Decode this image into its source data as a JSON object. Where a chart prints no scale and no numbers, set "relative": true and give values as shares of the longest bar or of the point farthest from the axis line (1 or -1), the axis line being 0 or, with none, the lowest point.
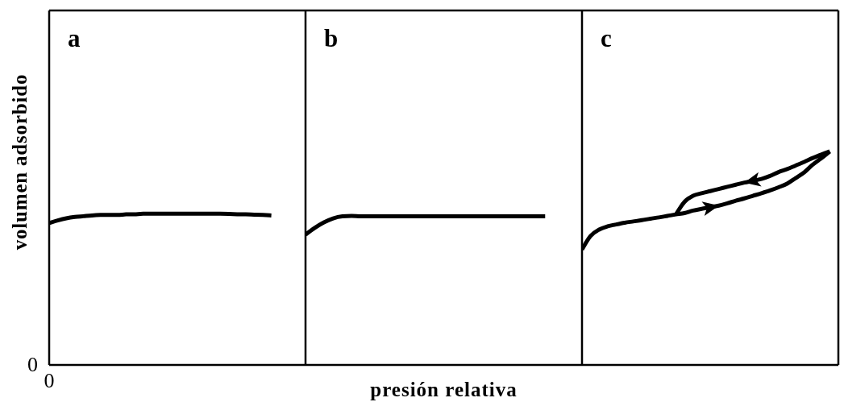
{
  "chart_data": [
    {
      "type": "line",
      "title": "a",
      "ylabel": "volumen adsorbido",
      "relative": true,
      "annotations": [
        "0",
        "0"
      ],
      "categories": [
        null,
        null,
        null,
        null,
        null,
        null,
        null,
        null,
        null,
        null,
        null,
        null,
        null,
        null,
        null,
        null,
        null,
        null,
        null,
        null,
        null,
        null,
        null,
        null,
        null,
        null,
        null,
        null,
        null,
        null,
        null
      ],
      "series": [
        {
          "color": "#000000",
          "values": [
            0.939,
            0.956,
            0.97,
            0.979,
            0.984,
            0.989,
            0.992,
            0.993,
            0.993,
            0.996,
            0.997,
            1,
            1,
            1,
            1,
            1,
            1,
            1,
            1,
            1,
            1,
            0.999,
            0.997,
            0.996,
            0.994,
            0.992,
            0.989,
            null,
            null,
            null,
            null
          ]
        }
      ]
    },
    {
      "type": "line",
      "title": "b",
      "xlabel": "presión relativa",
      "relative": true,
      "categories": [
        null,
        null,
        null,
        null,
        null,
        null,
        null,
        null,
        null,
        null,
        null,
        null,
        null,
        null,
        null,
        null,
        null,
        null,
        null,
        null,
        null,
        null,
        null,
        null,
        null,
        null,
        null,
        null,
        null,
        null,
        null
      ],
      "series": [
        {
          "color": "#000000",
          "values": [
            0.875,
            0.92,
            0.957,
            0.984,
            0.997,
            1,
            0.997,
            0.997,
            0.997,
            0.997,
            0.997,
            0.997,
            0.997,
            0.997,
            0.997,
            0.997,
            0.997,
            0.997,
            0.997,
            0.997,
            0.997,
            0.997,
            0.997,
            0.997,
            0.997,
            0.997,
            0.997,
            null,
            null,
            null,
            null
          ]
        }
      ]
    },
    {
      "type": "line",
      "title": "c",
      "relative": true,
      "categories": [
        null,
        null,
        null,
        null,
        null,
        null,
        null,
        null,
        null,
        null,
        null,
        null,
        null,
        null,
        null,
        null,
        null,
        null,
        null,
        null,
        null,
        null,
        null,
        null,
        null,
        null,
        null,
        null,
        null,
        null,
        null
      ],
      "series": [
        {
          "color": "#000000",
          "values": [
            0.54,
            0.604,
            0.634,
            0.649,
            0.658,
            0.666,
            0.672,
            0.678,
            0.685,
            0.691,
            0.698,
            0.705,
            0.711,
            0.723,
            0.731,
            0.738,
            0.746,
            0.757,
            0.769,
            0.78,
            0.792,
            0.804,
            0.817,
            0.832,
            0.849,
            0.875,
            0.902,
            0.938,
            0.968,
            1,
            null
          ]
        },
        {
          "color": "#000000",
          "values": [
            null,
            null,
            null,
            null,
            null,
            null,
            null,
            null,
            null,
            null,
            null,
            0.705,
            0.764,
            0.792,
            0.804,
            0.814,
            0.824,
            0.834,
            0.844,
            0.854,
            0.862,
            0.871,
            0.885,
            0.903,
            0.917,
            0.934,
            0.951,
            0.969,
            0.985,
            1,
            null
          ]
        }
      ]
    }
  ]
}
